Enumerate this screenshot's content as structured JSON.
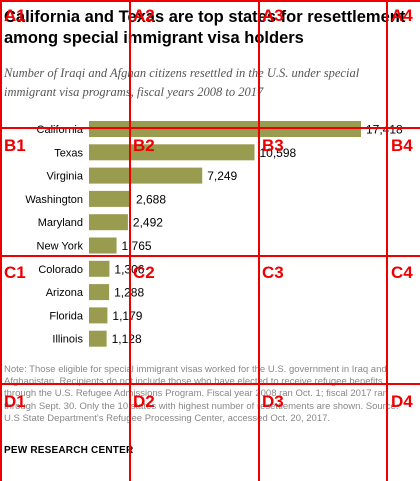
{
  "header": {
    "title": "California and Texas are top states for resettlement among special immigrant visa holders",
    "subtitle": "Number of Iraqi and Afghan citizens resettled in the U.S. under special immigrant visa programs, fiscal years 2008 to 2017"
  },
  "chart_data": {
    "type": "bar",
    "orientation": "horizontal",
    "title": "California and Texas are top states for resettlement among special immigrant visa holders",
    "subtitle": "Number of Iraqi and Afghan citizens resettled in the U.S. under special immigrant visa programs, fiscal years 2008 to 2017",
    "categories": [
      "California",
      "Texas",
      "Virginia",
      "Washington",
      "Maryland",
      "New York",
      "Colorado",
      "Arizona",
      "Florida",
      "Illinois"
    ],
    "values": [
      17418,
      10598,
      7249,
      2688,
      2492,
      1765,
      1306,
      1288,
      1179,
      1128
    ],
    "value_labels": [
      "17,418",
      "10,598",
      "7,249",
      "2,688",
      "2,492",
      "1,765",
      "1,306",
      "1,288",
      "1,179",
      "1,128"
    ],
    "bar_color": "#999b4e",
    "xlim": [
      0,
      17418
    ],
    "xlabel": "",
    "ylabel": "",
    "grid": false,
    "legend": "none"
  },
  "footer": {
    "note": "Note: Those eligible for special immigrant visas worked for the U.S. government in Iraq and Afghanistan. Recipients do not include those who have elected to receive refugee benefits through the U.S. Refugee Admissions Program. Fiscal year 2008 ran Oct. 1; fiscal 2017 ran through Sept. 30. Only the 10 states with highest number of resettlements are shown.",
    "source": "Source: U.S State Department's Refugee Processing Center, accessed Oct. 20, 2017.",
    "brand": "PEW RESEARCH CENTER"
  },
  "overlay_grid": {
    "color": "#ee0000",
    "labels": [
      "A1",
      "A2",
      "A3",
      "A4",
      "B1",
      "B2",
      "B3",
      "B4",
      "C1",
      "C2",
      "C3",
      "C4",
      "D1",
      "D2",
      "D3",
      "D4"
    ]
  }
}
